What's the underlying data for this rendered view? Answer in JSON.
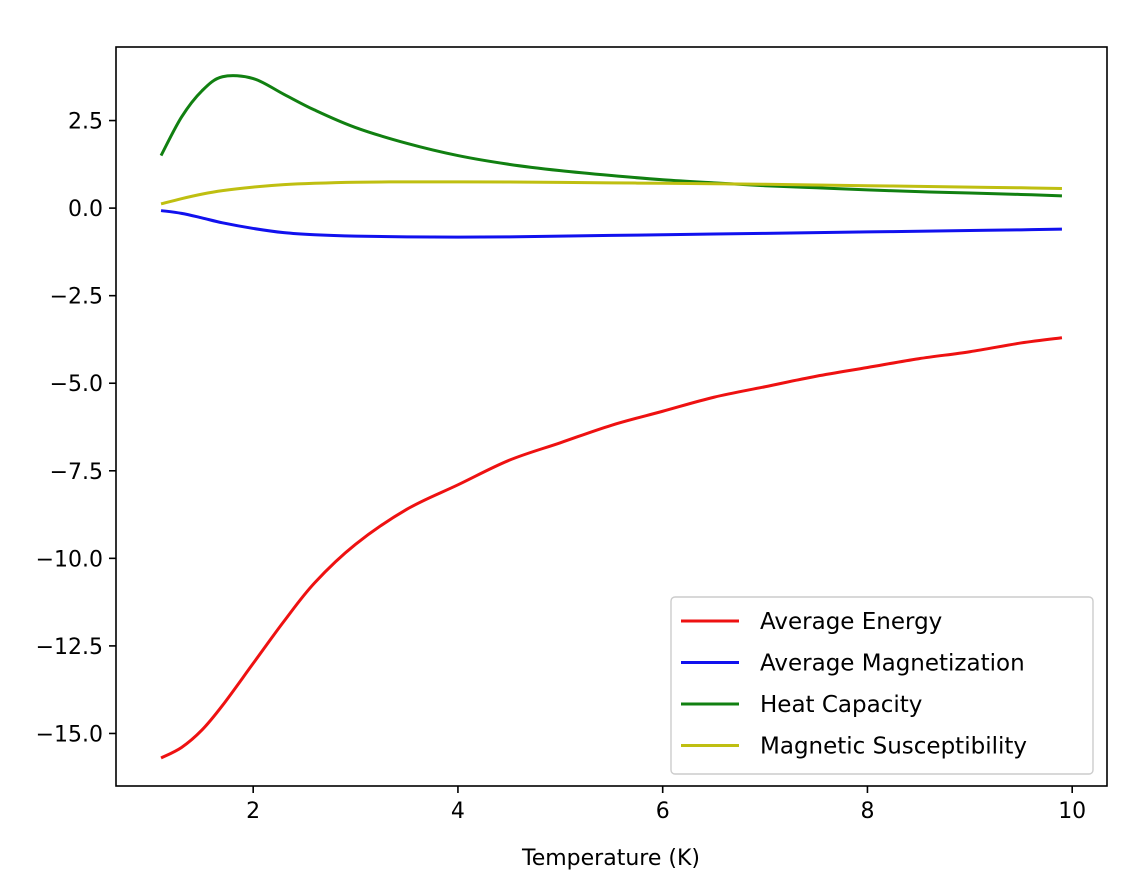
{
  "chart_data": {
    "type": "line",
    "title": "",
    "xlabel": "Temperature (K)",
    "ylabel": "",
    "xlim": [
      0.66,
      10.34
    ],
    "ylim": [
      -16.5,
      4.6
    ],
    "xticks": [
      2,
      4,
      6,
      8,
      10
    ],
    "xtick_labels": [
      "2",
      "4",
      "6",
      "8",
      "10"
    ],
    "yticks": [
      2.5,
      0.0,
      -2.5,
      -5.0,
      -7.5,
      -10.0,
      -12.5,
      -15.0
    ],
    "ytick_labels": [
      "2.5",
      "0.0",
      "−2.5",
      "−5.0",
      "−7.5",
      "−10.0",
      "−12.5",
      "−15.0"
    ],
    "grid": false,
    "legend": "lower-right",
    "x": [
      1.1,
      1.3,
      1.5,
      1.7,
      2.0,
      2.3,
      2.6,
      3.0,
      3.5,
      4.0,
      4.5,
      5.0,
      5.5,
      6.0,
      6.5,
      7.0,
      7.5,
      8.0,
      8.5,
      9.0,
      9.5,
      9.9
    ],
    "series": [
      {
        "name": "Average Energy",
        "color": "#ee1111",
        "values": [
          -15.7,
          -15.4,
          -14.9,
          -14.2,
          -13.0,
          -11.8,
          -10.7,
          -9.6,
          -8.6,
          -7.9,
          -7.2,
          -6.7,
          -6.2,
          -5.8,
          -5.4,
          -5.1,
          -4.8,
          -4.55,
          -4.3,
          -4.1,
          -3.85,
          -3.7
        ]
      },
      {
        "name": "Average Magnetization",
        "color": "#1111ee",
        "values": [
          -0.07,
          -0.15,
          -0.28,
          -0.42,
          -0.58,
          -0.7,
          -0.76,
          -0.8,
          -0.82,
          -0.83,
          -0.82,
          -0.8,
          -0.78,
          -0.76,
          -0.74,
          -0.72,
          -0.7,
          -0.68,
          -0.66,
          -0.64,
          -0.62,
          -0.6
        ]
      },
      {
        "name": "Heat Capacity",
        "color": "#118011",
        "values": [
          1.5,
          2.6,
          3.35,
          3.75,
          3.7,
          3.25,
          2.8,
          2.3,
          1.85,
          1.5,
          1.25,
          1.07,
          0.93,
          0.81,
          0.72,
          0.64,
          0.58,
          0.52,
          0.47,
          0.43,
          0.39,
          0.35
        ]
      },
      {
        "name": "Magnetic Susceptibility",
        "color": "#bfbf11",
        "values": [
          0.12,
          0.27,
          0.4,
          0.5,
          0.6,
          0.67,
          0.71,
          0.74,
          0.75,
          0.75,
          0.745,
          0.735,
          0.72,
          0.71,
          0.695,
          0.68,
          0.66,
          0.64,
          0.62,
          0.6,
          0.58,
          0.56
        ]
      }
    ]
  }
}
